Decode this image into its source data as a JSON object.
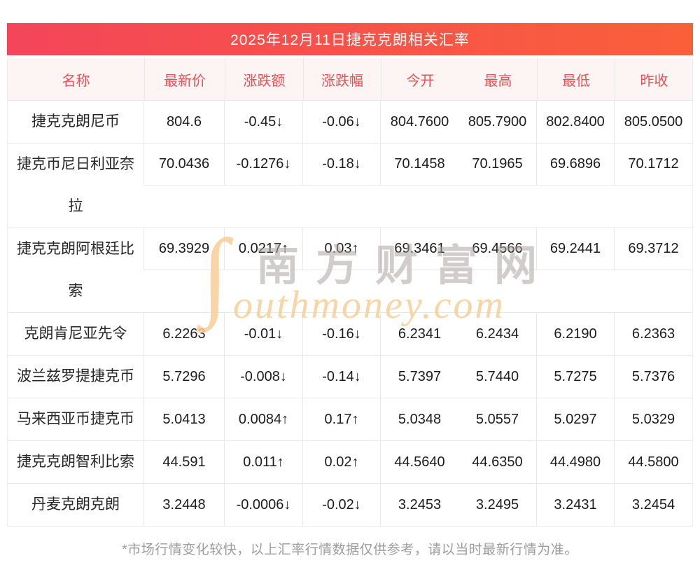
{
  "page": {
    "title": "2025年12月11日捷克克朗相关汇率",
    "footer_note": "*市场行情变化较快，以上汇率行情数据仅供参考，请以当时最新行情为准。"
  },
  "watermark": {
    "swoosh_icon": "∫",
    "cn_text": "南方财富网",
    "en_text": "outhmoney.com"
  },
  "colors": {
    "title_gradient_start": "#f4455a",
    "title_gradient_end": "#f9603a",
    "header_bg": "#fdf4f4",
    "header_text": "#f04f55",
    "up_red": "#ef0101",
    "down_green": "#0b9909",
    "number_black": "#1c1c1c",
    "border_gray": "#e8e8e8",
    "footer_gray": "#9c9c9c"
  },
  "table": {
    "columns": [
      "名称",
      "最新价",
      "涨跌额",
      "涨跌幅",
      "今开",
      "最高",
      "最低",
      "昨收"
    ],
    "rows": [
      {
        "name": "捷克克朗尼币",
        "latest": "804.6",
        "change": "-0.45↓",
        "change_pct": "-0.06↓",
        "trend": "down",
        "open": "804.7600",
        "high": "805.7900",
        "low": "802.8400",
        "prev_close": "805.0500",
        "tall": false
      },
      {
        "name": "捷克币尼日利亚奈拉",
        "latest": "70.0436",
        "change": "-0.1276↓",
        "change_pct": "-0.18↓",
        "trend": "down",
        "open": "70.1458",
        "high": "70.1965",
        "low": "69.6896",
        "prev_close": "70.1712",
        "tall": true
      },
      {
        "name": "捷克克朗阿根廷比索",
        "latest": "69.3929",
        "change": "0.0217↑",
        "change_pct": "0.03↑",
        "trend": "up",
        "open": "69.3461",
        "high": "69.4566",
        "low": "69.2441",
        "prev_close": "69.3712",
        "tall": true
      },
      {
        "name": "克朗肯尼亚先令",
        "latest": "6.2263",
        "change": "-0.01↓",
        "change_pct": "-0.16↓",
        "trend": "down",
        "open": "6.2341",
        "high": "6.2434",
        "low": "6.2190",
        "prev_close": "6.2363",
        "tall": false
      },
      {
        "name": "波兰兹罗提捷克币",
        "latest": "5.7296",
        "change": "-0.008↓",
        "change_pct": "-0.14↓",
        "trend": "down",
        "open": "5.7397",
        "high": "5.7440",
        "low": "5.7275",
        "prev_close": "5.7376",
        "tall": false
      },
      {
        "name": "马来西亚币捷克币",
        "latest": "5.0413",
        "change": "0.0084↑",
        "change_pct": "0.17↑",
        "trend": "up",
        "open": "5.0348",
        "high": "5.0557",
        "low": "5.0297",
        "prev_close": "5.0329",
        "tall": false
      },
      {
        "name": "捷克克朗智利比索",
        "latest": "44.591",
        "change": "0.011↑",
        "change_pct": "0.02↑",
        "trend": "up",
        "open": "44.5640",
        "high": "44.6350",
        "low": "44.4980",
        "prev_close": "44.5800",
        "tall": false
      },
      {
        "name": "丹麦克朗克朗",
        "latest": "3.2448",
        "change": "-0.0006↓",
        "change_pct": "-0.02↓",
        "trend": "down",
        "open": "3.2453",
        "high": "3.2495",
        "low": "3.2431",
        "prev_close": "3.2454",
        "tall": false
      }
    ]
  }
}
